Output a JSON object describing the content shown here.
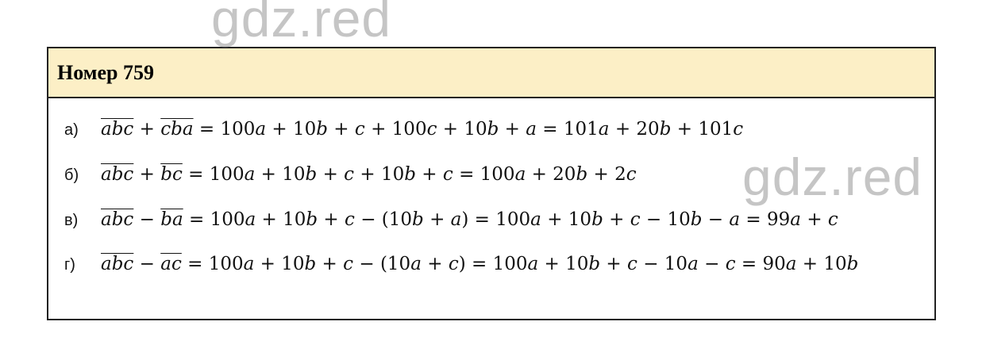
{
  "watermark": "gdz.red",
  "header": {
    "title": "Номер 759"
  },
  "colors": {
    "header_bg": "#fcefc6",
    "border": "#222222"
  },
  "lines": [
    {
      "label": "а)",
      "lhs": [
        "abc",
        "+",
        "cba"
      ],
      "rhs": " = 100a + 10b + c + 100c + 10b + a = 101a + 20b + 101c"
    },
    {
      "label": "б)",
      "lhs": [
        "abc",
        "+",
        "bc"
      ],
      "rhs": " = 100a + 10b + c + 10b + c = 100a + 20b + 2c"
    },
    {
      "label": "в)",
      "lhs": [
        "abc",
        "−",
        "ba"
      ],
      "rhs": " = 100a + 10b + c − (10b + a) = 100a + 10b + c − 10b − a = 99a + c"
    },
    {
      "label": "г)",
      "lhs": [
        "abc",
        "−",
        "ac"
      ],
      "rhs": " = 100a + 10b + c − (10a + c) = 100a + 10b + c − 10a − c = 90a + 10b"
    }
  ]
}
